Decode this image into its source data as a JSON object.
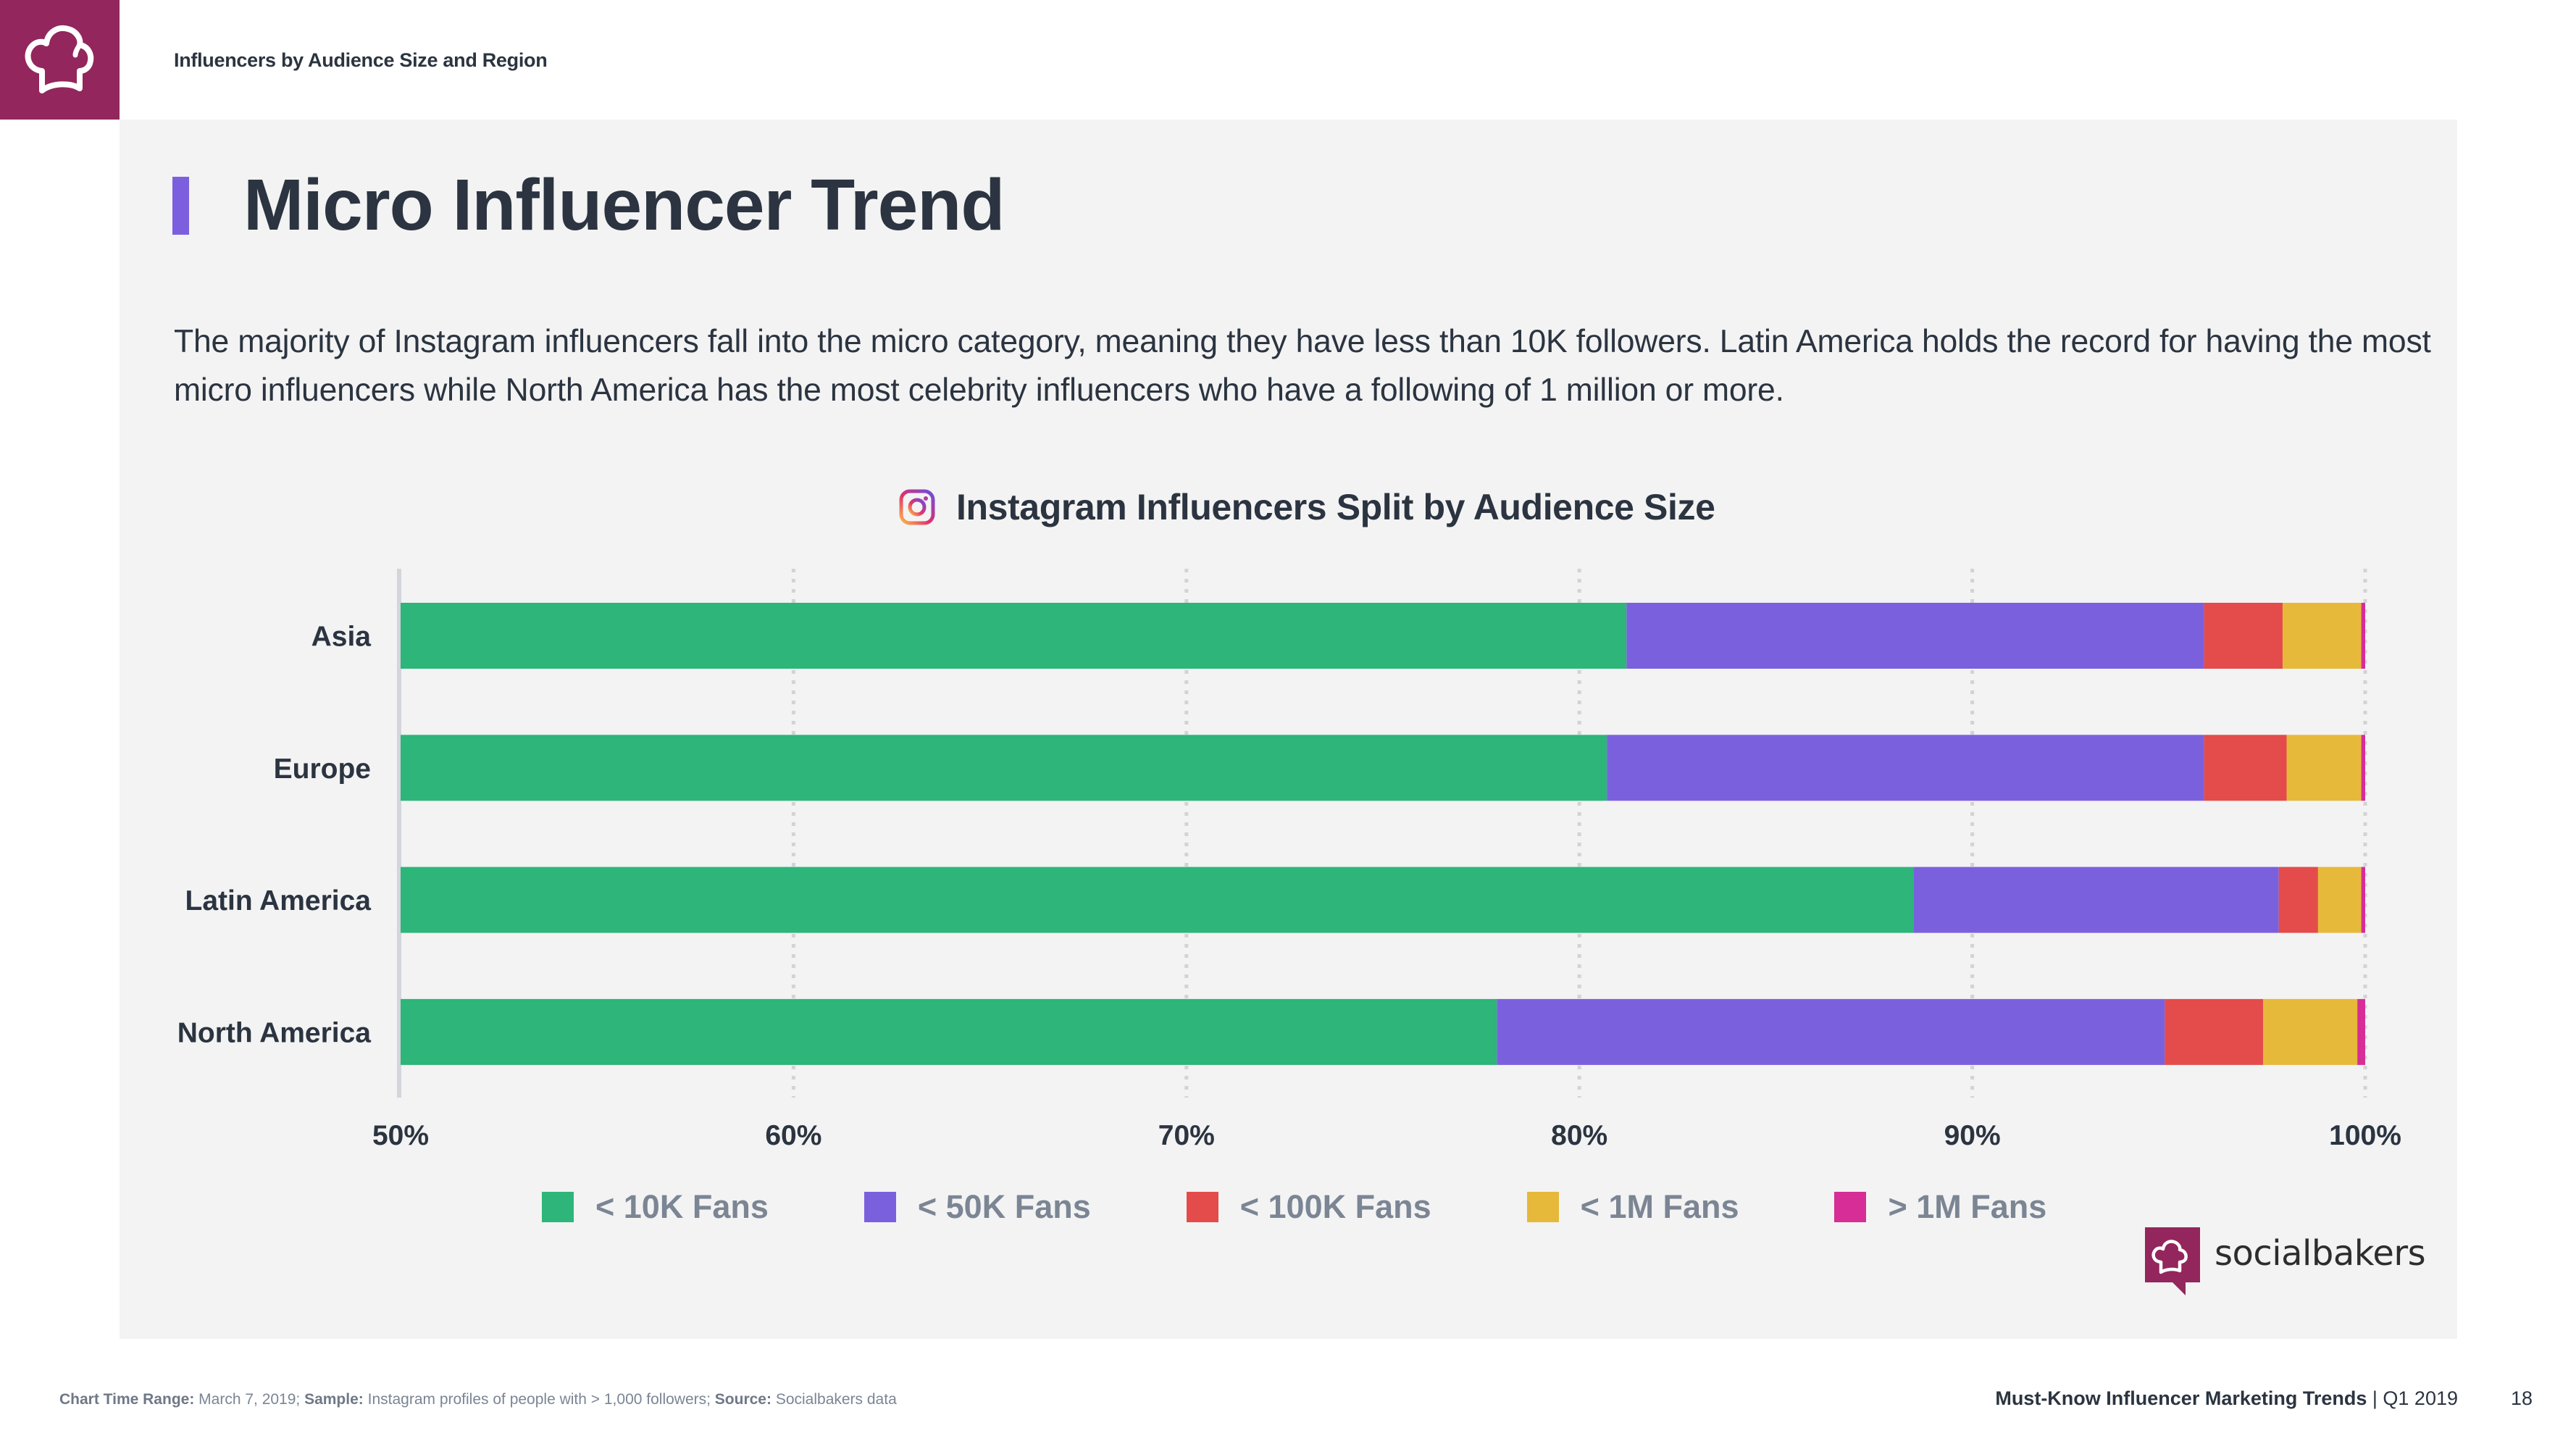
{
  "header": {
    "section_title": "Influencers by Audience Size and Region",
    "brand_icon": "chef-hat-icon",
    "brand_color": "#93265c"
  },
  "page": {
    "title": "Micro Influencer Trend",
    "accent_color": "#7b5fde",
    "description": "The majority of Instagram influencers fall into the micro category, meaning they have less than 10K followers. Latin America holds the record for having the most micro influencers while North America has the most celebrity influencers who have a following of 1 million or more."
  },
  "chart_data": {
    "type": "bar",
    "orientation": "horizontal",
    "stacked": true,
    "title": "Instagram Influencers Split by Audience Size",
    "title_icon": "instagram-icon",
    "categories": [
      "Asia",
      "Europe",
      "Latin America",
      "North America"
    ],
    "series": [
      {
        "name": "< 10K Fans",
        "color": "#2db57a",
        "values": [
          81.2,
          80.7,
          88.5,
          77.9
        ]
      },
      {
        "name": "< 50K Fans",
        "color": "#7b60de",
        "values": [
          14.7,
          15.2,
          9.3,
          17.0
        ]
      },
      {
        "name": "< 100K Fans",
        "color": "#e44b4b",
        "values": [
          2.0,
          2.1,
          1.0,
          2.5
        ]
      },
      {
        "name": "< 1M Fans",
        "color": "#e7b93a",
        "values": [
          2.0,
          1.9,
          1.1,
          2.4
        ]
      },
      {
        "name": "> 1M Fans",
        "color": "#d62d96",
        "values": [
          0.1,
          0.1,
          0.1,
          0.2
        ]
      }
    ],
    "xlim": [
      50,
      100
    ],
    "xticks": [
      50,
      60,
      70,
      80,
      90,
      100
    ],
    "xtick_labels": [
      "50%",
      "60%",
      "70%",
      "80%",
      "90%",
      "100%"
    ],
    "xlabel": "",
    "ylabel": "",
    "grid": "vertical dotted",
    "legend_position": "bottom"
  },
  "branding": {
    "logo_text": "socialbakers"
  },
  "footer": {
    "time_range_label": "Chart Time Range:",
    "time_range_value": " March 7, 2019; ",
    "sample_label": "Sample:",
    "sample_value": " Instagram profiles of people with > 1,000 followers; ",
    "source_label": "Source:",
    "source_value": " Socialbakers data",
    "report_title": "Must-Know Influencer Marketing Trends",
    "report_period": " | Q1 2019",
    "page_number": "18"
  }
}
